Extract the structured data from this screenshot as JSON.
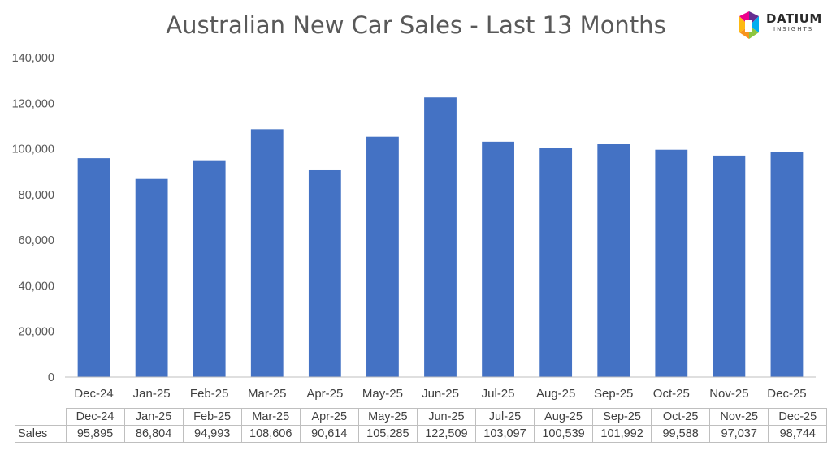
{
  "title": "Australian New Car Sales  - Last 13 Months",
  "logo": {
    "name": "DATIUM",
    "sub": "INSIGHTS",
    "colors": [
      "#f7941d",
      "#8dc63f",
      "#00aeef",
      "#ec008c",
      "#662d91"
    ]
  },
  "chart_data": {
    "type": "bar",
    "title": "Australian New Car Sales  - Last 13 Months",
    "xlabel": "",
    "ylabel": "",
    "ylim": [
      0,
      140000
    ],
    "yticks": [
      0,
      20000,
      40000,
      60000,
      80000,
      100000,
      120000,
      140000
    ],
    "ytick_labels": [
      "0",
      "20,000",
      "40,000",
      "60,000",
      "80,000",
      "100,000",
      "120,000",
      "140,000"
    ],
    "categories": [
      "Dec-24",
      "Jan-25",
      "Feb-25",
      "Mar-25",
      "Apr-25",
      "May-25",
      "Jun-25",
      "Jul-25",
      "Aug-25",
      "Sep-25",
      "Oct-25",
      "Nov-25",
      "Dec-25"
    ],
    "series": [
      {
        "name": "Sales",
        "color": "#4472c4",
        "values": [
          95895,
          86804,
          94993,
          108606,
          90614,
          105285,
          122509,
          103097,
          100539,
          101992,
          99588,
          97037,
          98744
        ]
      }
    ],
    "grid": false,
    "legend": "none",
    "data_table": {
      "row_label": "Sales",
      "values_text": [
        "95,895",
        "86,804",
        "94,993",
        "108,606",
        "90,614",
        "105,285",
        "122,509",
        "103,097",
        "100,539",
        "101,992",
        "99,588",
        "97,037",
        "98,744"
      ]
    }
  }
}
